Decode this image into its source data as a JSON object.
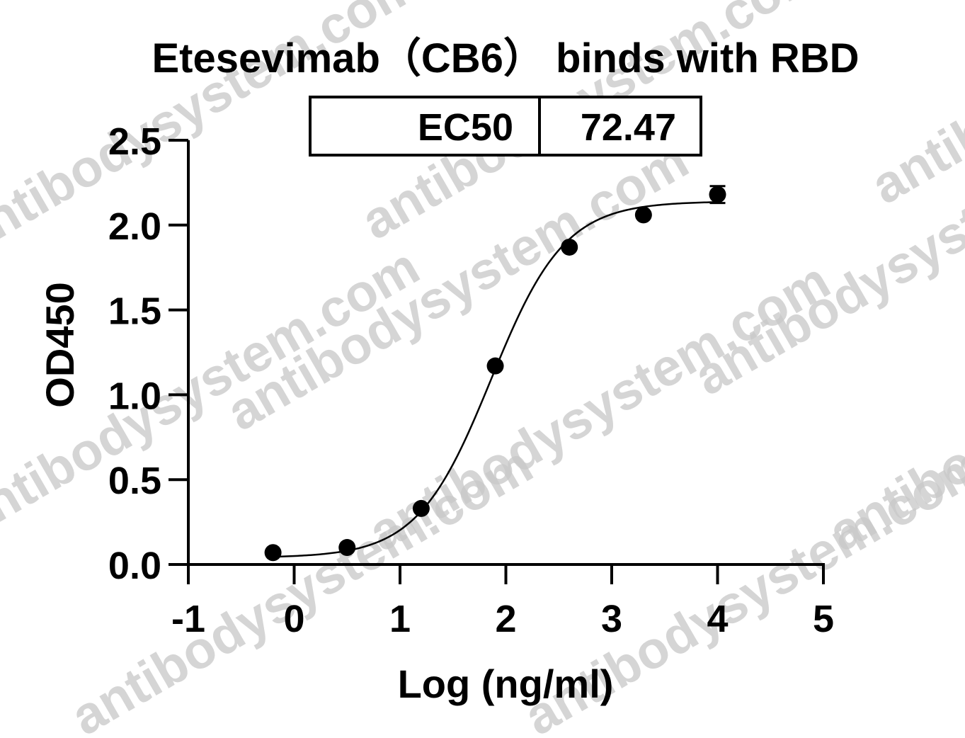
{
  "watermark": {
    "text": "antibodysystem.com"
  },
  "chart_data": {
    "type": "scatter",
    "title": "Etesevimab（CB6） binds with RBD",
    "xlabel": "Log (ng/ml)",
    "ylabel": "OD450",
    "xlim": [
      -1,
      5
    ],
    "ylim": [
      0,
      2.5
    ],
    "x_ticks": [
      "-1",
      "0",
      "1",
      "2",
      "3",
      "4",
      "5"
    ],
    "y_ticks": [
      "0.0",
      "0.5",
      "1.0",
      "1.5",
      "2.0",
      "2.5"
    ],
    "grid": false,
    "series": [
      {
        "points": [
          {
            "x": -0.2,
            "y": 0.07
          },
          {
            "x": 0.5,
            "y": 0.1
          },
          {
            "x": 1.2,
            "y": 0.33
          },
          {
            "x": 1.9,
            "y": 1.17
          },
          {
            "x": 2.6,
            "y": 1.87
          },
          {
            "x": 3.3,
            "y": 2.06
          },
          {
            "x": 4.0,
            "y": 2.18,
            "error": 0.05
          }
        ],
        "fit": {
          "model": "four-parameter logistic",
          "bottom": 0.04,
          "top": 2.14,
          "log_ec50": 1.86,
          "hill_slope": 1.25
        }
      }
    ],
    "legend_table": {
      "label": "EC50",
      "value": "72.47"
    }
  }
}
